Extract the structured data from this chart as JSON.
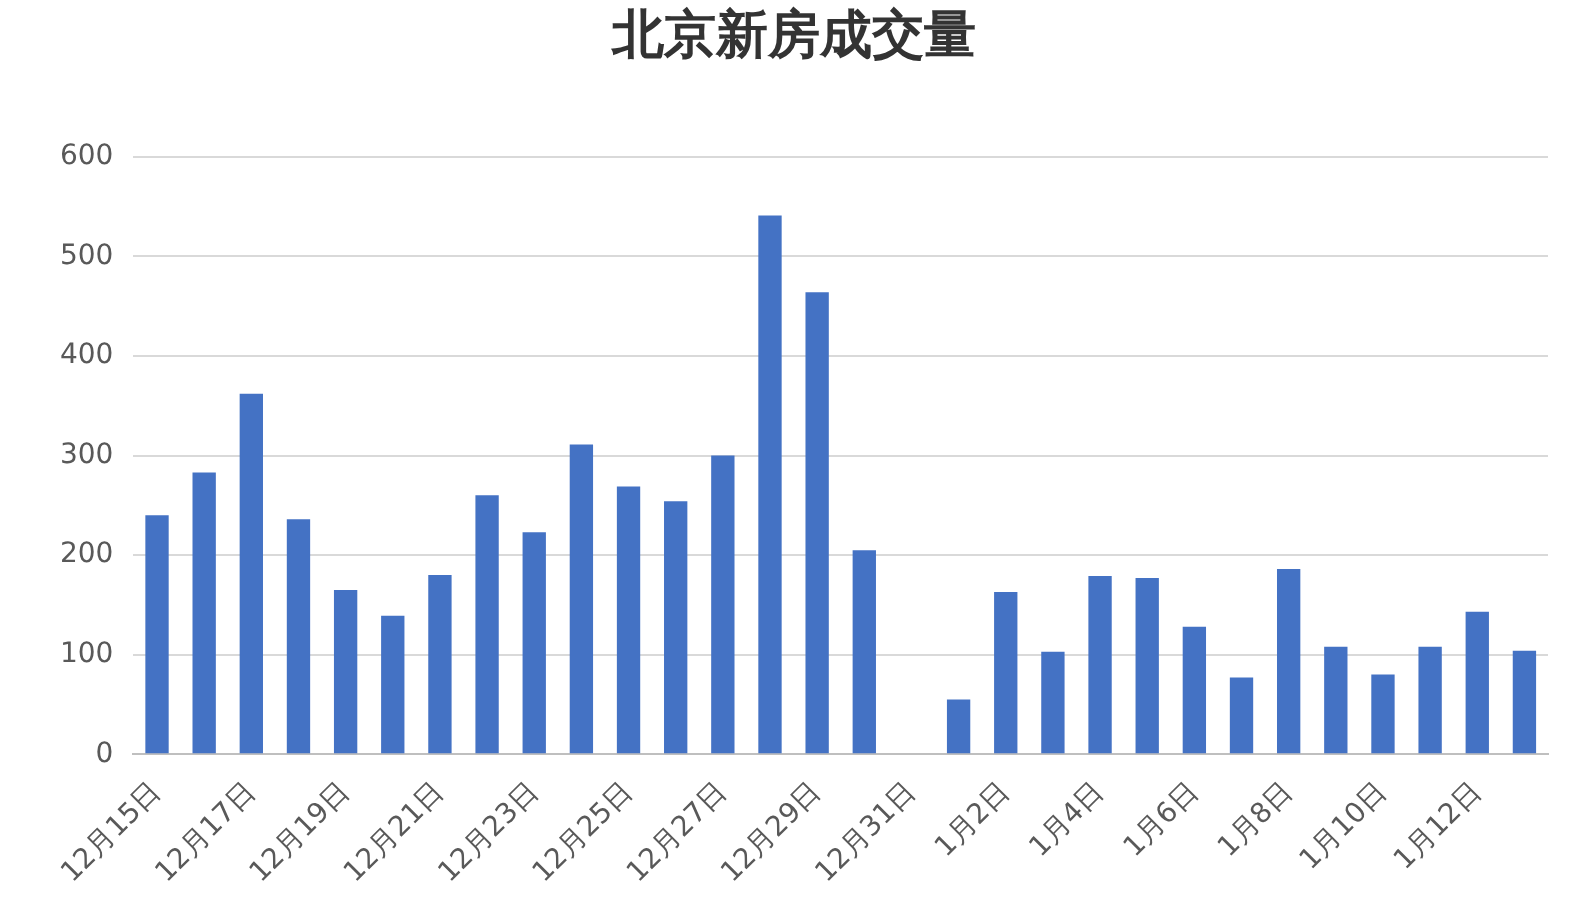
{
  "chart_data": {
    "type": "bar",
    "title": "北京新房成交量",
    "categories": [
      "12月15日",
      null,
      "12月17日",
      null,
      "12月19日",
      null,
      "12月21日",
      null,
      "12月23日",
      null,
      "12月25日",
      null,
      "12月27日",
      null,
      "12月29日",
      null,
      "12月31日",
      null,
      "1月2日",
      null,
      "1月4日",
      null,
      "1月6日",
      null,
      "1月8日",
      null,
      "1月10日",
      null,
      "1月12日",
      null
    ],
    "values": [
      240,
      283,
      362,
      236,
      165,
      139,
      180,
      260,
      223,
      311,
      269,
      254,
      300,
      541,
      464,
      205,
      null,
      55,
      163,
      103,
      179,
      177,
      128,
      77,
      186,
      108,
      80,
      108,
      143,
      104
    ],
    "color": "#4472c4",
    "ylim": [
      0,
      600
    ],
    "yticks": [
      0,
      100,
      200,
      300,
      400,
      500,
      600
    ],
    "grid": "y"
  }
}
